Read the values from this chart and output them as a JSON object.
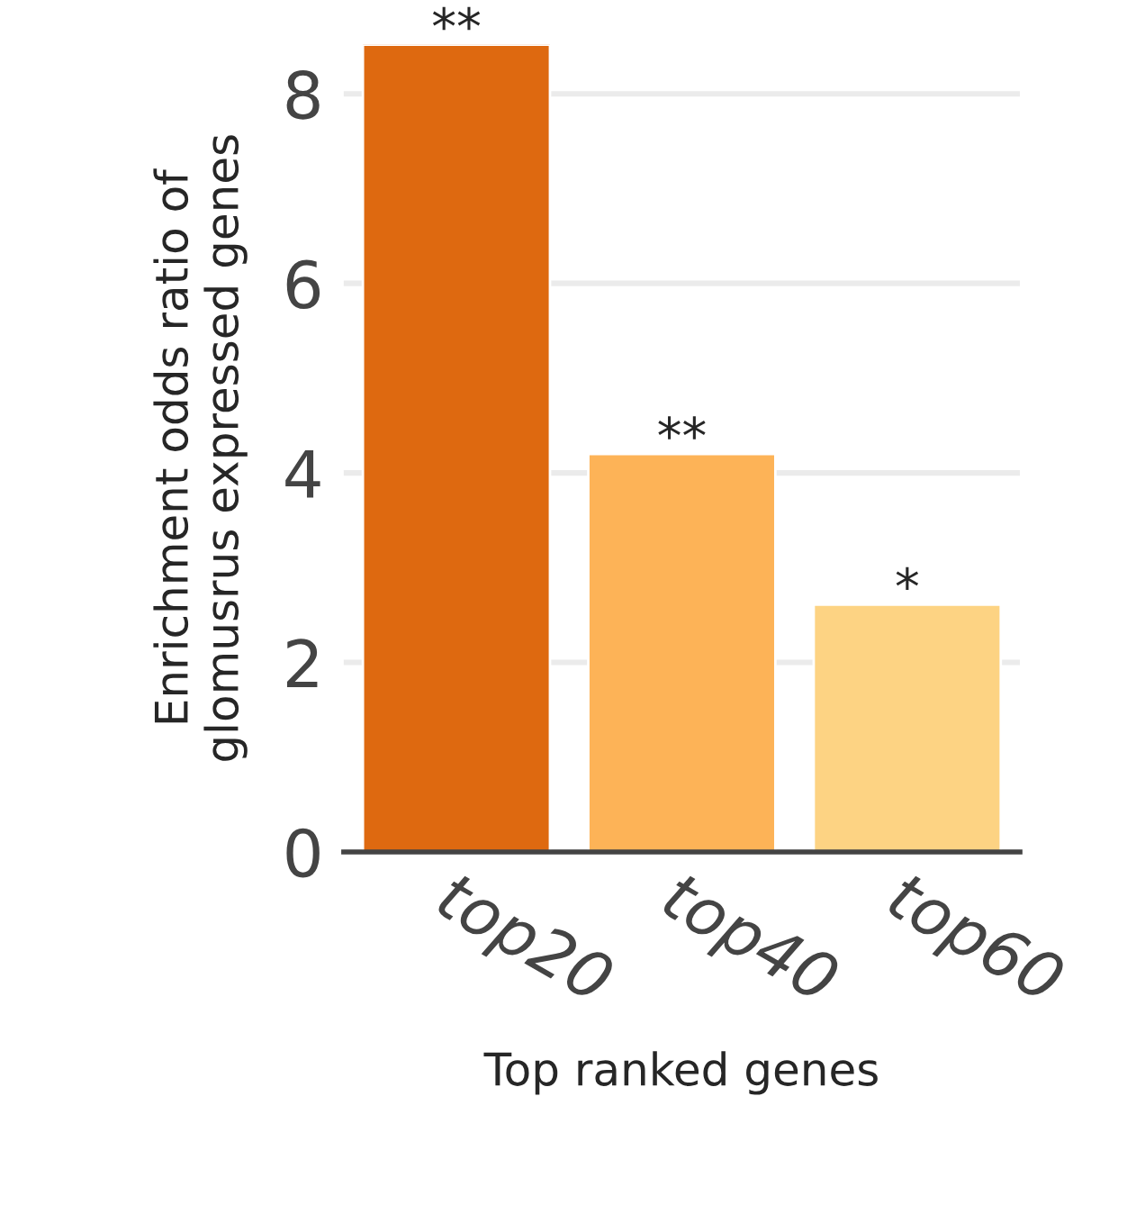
{
  "chart_data": {
    "type": "bar",
    "xlabel": "Top ranked genes",
    "ylabel": "Enrichment odds ratio of\nglomusrus expressed genes",
    "categories": [
      "top20",
      "top40",
      "top60"
    ],
    "values": [
      8.52,
      4.2,
      2.61
    ],
    "colors": [
      "#de6910",
      "#fdb357",
      "#fdd383"
    ],
    "ylim": [
      0,
      8.52
    ],
    "yticks": [
      0,
      2,
      4,
      6,
      8
    ],
    "grid": "y",
    "annotations": [
      {
        "text": "**",
        "x": "top20",
        "y": 8.52
      },
      {
        "text": "**",
        "x": "top40",
        "y": 4.2
      },
      {
        "text": "*",
        "x": "top60",
        "y": 2.61
      }
    ]
  }
}
